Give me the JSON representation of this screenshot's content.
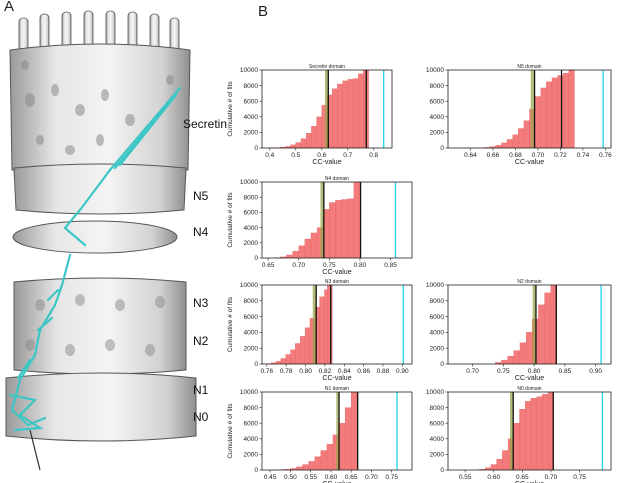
{
  "panel_a_letter": "A",
  "panel_b_letter": "B",
  "structure_labels": [
    "Secretin",
    "N5",
    "N4",
    "N3",
    "N2",
    "N1",
    "N0"
  ],
  "colors": {
    "bar": "#f47b7b",
    "bar_edge": "#e06060",
    "green_line": "#9aa84a",
    "cyan_line": "#22d3e6",
    "black_line": "#111111",
    "map_gray": "#bdbdbd",
    "model_cyan": "#3cc6c6"
  },
  "chart_data": [
    {
      "type": "bar",
      "title": "Secretin domain",
      "xlabel": "CC-value",
      "ylabel": "Cumulative # of fits",
      "xlim": [
        0.37,
        0.87
      ],
      "ylim": [
        0,
        10000
      ],
      "xticks": [
        "0.4",
        "0.5",
        "0.6",
        "0.7",
        "0.8"
      ],
      "xtick_values": [
        0.4,
        0.5,
        0.6,
        0.7,
        0.8
      ],
      "yticks": [
        "0",
        "2000",
        "4000",
        "6000",
        "8000",
        "10000"
      ],
      "ytick_values": [
        0,
        2000,
        4000,
        6000,
        8000,
        10000
      ],
      "x": [
        0.41,
        0.43,
        0.45,
        0.47,
        0.49,
        0.51,
        0.53,
        0.55,
        0.57,
        0.59,
        0.61,
        0.63,
        0.65,
        0.67,
        0.69,
        0.71,
        0.73,
        0.75,
        0.77
      ],
      "values": [
        20,
        50,
        100,
        200,
        400,
        700,
        1200,
        1900,
        2800,
        4000,
        5500,
        6800,
        7600,
        8200,
        8600,
        8800,
        8900,
        9500,
        10000
      ],
      "bar_width": 0.02,
      "lines": [
        {
          "x": 0.618,
          "color": "green"
        },
        {
          "x": 0.625,
          "color": "black"
        },
        {
          "x": 0.771,
          "color": "black"
        },
        {
          "x": 0.838,
          "color": "cyan"
        }
      ]
    },
    {
      "type": "bar",
      "title": "N5 domain",
      "xlabel": "CC-value",
      "ylabel": "",
      "xlim": [
        0.62,
        0.765
      ],
      "ylim": [
        0,
        10000
      ],
      "xticks": [
        "0.64",
        "0.66",
        "0.68",
        "0.70",
        "0.72",
        "0.74",
        "0.76"
      ],
      "xtick_values": [
        0.64,
        0.66,
        0.68,
        0.7,
        0.72,
        0.74,
        0.76
      ],
      "yticks": [
        "0",
        "2000",
        "4000",
        "6000",
        "8000",
        "10000"
      ],
      "ytick_values": [
        0,
        2000,
        4000,
        6000,
        8000,
        10000
      ],
      "x": [
        0.645,
        0.65,
        0.655,
        0.66,
        0.665,
        0.67,
        0.675,
        0.68,
        0.685,
        0.69,
        0.695,
        0.7,
        0.705,
        0.71,
        0.715,
        0.72,
        0.725,
        0.73
      ],
      "values": [
        10,
        30,
        80,
        180,
        350,
        650,
        1100,
        1700,
        2500,
        3500,
        5000,
        6600,
        7700,
        8500,
        9000,
        9300,
        9600,
        10000
      ],
      "bar_width": 0.005,
      "lines": [
        {
          "x": 0.695,
          "color": "green"
        },
        {
          "x": 0.697,
          "color": "black"
        },
        {
          "x": 0.721,
          "color": "black"
        },
        {
          "x": 0.758,
          "color": "cyan"
        }
      ]
    },
    {
      "type": "bar",
      "title": "N4 domain",
      "xlabel": "CC-value",
      "ylabel": "Cumulative # of fits",
      "xlim": [
        0.64,
        0.885
      ],
      "ylim": [
        0,
        10000
      ],
      "xticks": [
        "0.65",
        "0.70",
        "0.75",
        "0.80",
        "0.85"
      ],
      "xtick_values": [
        0.65,
        0.7,
        0.75,
        0.8,
        0.85
      ],
      "yticks": [
        "0",
        "2000",
        "4000",
        "6000",
        "8000",
        "10000"
      ],
      "ytick_values": [
        0,
        2000,
        4000,
        6000,
        8000,
        10000
      ],
      "x": [
        0.665,
        0.675,
        0.685,
        0.695,
        0.705,
        0.715,
        0.725,
        0.735,
        0.745,
        0.755,
        0.765,
        0.775,
        0.785,
        0.795
      ],
      "values": [
        50,
        150,
        400,
        900,
        1600,
        2500,
        3300,
        4000,
        6400,
        7300,
        7600,
        7700,
        7800,
        10000
      ],
      "bar_width": 0.01,
      "lines": [
        {
          "x": 0.738,
          "color": "green"
        },
        {
          "x": 0.741,
          "color": "black"
        },
        {
          "x": 0.801,
          "color": "black"
        },
        {
          "x": 0.858,
          "color": "cyan"
        }
      ]
    },
    {
      "type": "bar",
      "title": "N3 domain",
      "xlabel": "CC-value",
      "ylabel": "Cumulative # of fits",
      "xlim": [
        0.755,
        0.91
      ],
      "ylim": [
        0,
        10000
      ],
      "xticks": [
        "0.76",
        "0.78",
        "0.80",
        "0.82",
        "0.84",
        "0.86",
        "0.88",
        "0.90"
      ],
      "xtick_values": [
        0.76,
        0.78,
        0.8,
        0.82,
        0.84,
        0.86,
        0.88,
        0.9
      ],
      "yticks": [
        "0",
        "2000",
        "4000",
        "6000",
        "8000",
        "10000"
      ],
      "ytick_values": [
        0,
        2000,
        4000,
        6000,
        8000,
        10000
      ],
      "x": [
        0.762,
        0.767,
        0.772,
        0.777,
        0.782,
        0.787,
        0.792,
        0.797,
        0.802,
        0.807,
        0.812,
        0.817,
        0.822,
        0.825
      ],
      "values": [
        50,
        150,
        350,
        700,
        1200,
        1800,
        2600,
        3500,
        4600,
        5800,
        7200,
        8500,
        9400,
        10000
      ],
      "bar_width": 0.005,
      "lines": [
        {
          "x": 0.809,
          "color": "green"
        },
        {
          "x": 0.811,
          "color": "black"
        },
        {
          "x": 0.826,
          "color": "black"
        },
        {
          "x": 0.901,
          "color": "cyan"
        }
      ]
    },
    {
      "type": "bar",
      "title": "N2 domain",
      "xlabel": "CC-value",
      "ylabel": "",
      "xlim": [
        0.66,
        0.925
      ],
      "ylim": [
        0,
        10000
      ],
      "xticks": [
        "0.70",
        "0.75",
        "0.80",
        "0.85",
        "0.90"
      ],
      "xtick_values": [
        0.7,
        0.75,
        0.8,
        0.85,
        0.9
      ],
      "yticks": [
        "0",
        "2000",
        "4000",
        "6000",
        "8000",
        "10000"
      ],
      "ytick_values": [
        0,
        2000,
        4000,
        6000,
        8000,
        10000
      ],
      "x": [
        0.742,
        0.752,
        0.762,
        0.772,
        0.782,
        0.792,
        0.802,
        0.812,
        0.822,
        0.832
      ],
      "values": [
        200,
        500,
        1000,
        1700,
        2700,
        4000,
        5700,
        7500,
        9000,
        10000
      ],
      "bar_width": 0.01,
      "lines": [
        {
          "x": 0.8,
          "color": "green"
        },
        {
          "x": 0.803,
          "color": "black"
        },
        {
          "x": 0.836,
          "color": "black"
        },
        {
          "x": 0.909,
          "color": "cyan"
        }
      ]
    },
    {
      "type": "bar",
      "title": "N1 domain",
      "xlabel": "CC-value",
      "ylabel": "Cumulative # of fits",
      "xlim": [
        0.43,
        0.8
      ],
      "ylim": [
        0,
        10000
      ],
      "xticks": [
        "0.45",
        "0.50",
        "0.55",
        "0.60",
        "0.65",
        "0.70",
        "0.75"
      ],
      "xtick_values": [
        0.45,
        0.5,
        0.55,
        0.6,
        0.65,
        0.7,
        0.75
      ],
      "yticks": [
        "0",
        "2000",
        "4000",
        "6000",
        "8000",
        "10000"
      ],
      "ytick_values": [
        0,
        2000,
        4000,
        6000,
        8000,
        10000
      ],
      "x": [
        0.4775,
        0.4925,
        0.5075,
        0.5225,
        0.5375,
        0.5525,
        0.5675,
        0.5825,
        0.5975,
        0.6125,
        0.6275,
        0.6425,
        0.6575
      ],
      "values": [
        50,
        100,
        200,
        400,
        700,
        1100,
        1700,
        2500,
        3300,
        4500,
        6000,
        8000,
        10000
      ],
      "bar_width": 0.015,
      "lines": [
        {
          "x": 0.617,
          "color": "green"
        },
        {
          "x": 0.62,
          "color": "black"
        },
        {
          "x": 0.666,
          "color": "black"
        },
        {
          "x": 0.763,
          "color": "cyan"
        }
      ]
    },
    {
      "type": "bar",
      "title": "N0 domain",
      "xlabel": "CC-value",
      "ylabel": "",
      "xlim": [
        0.52,
        0.805
      ],
      "ylim": [
        0,
        10000
      ],
      "xticks": [
        "0.55",
        "0.60",
        "0.65",
        "0.70",
        "0.75"
      ],
      "xtick_values": [
        0.55,
        0.6,
        0.65,
        0.7,
        0.75
      ],
      "yticks": [
        "0",
        "2000",
        "4000",
        "6000",
        "8000",
        "10000"
      ],
      "ytick_values": [
        0,
        2000,
        4000,
        6000,
        8000,
        10000
      ],
      "x": [
        0.58,
        0.59,
        0.6,
        0.61,
        0.62,
        0.63,
        0.64,
        0.65,
        0.66,
        0.67,
        0.68,
        0.69,
        0.7
      ],
      "values": [
        100,
        300,
        700,
        1400,
        2500,
        4000,
        6000,
        7800,
        8800,
        9200,
        9400,
        9700,
        10000
      ],
      "bar_width": 0.01,
      "lines": [
        {
          "x": 0.631,
          "color": "green"
        },
        {
          "x": 0.634,
          "color": "black"
        },
        {
          "x": 0.704,
          "color": "black"
        },
        {
          "x": 0.79,
          "color": "cyan"
        }
      ]
    }
  ]
}
